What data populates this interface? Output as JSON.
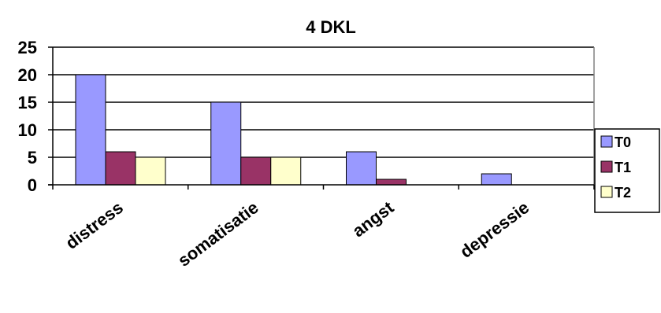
{
  "chart_data": {
    "type": "bar",
    "title": "4 DKL",
    "categories": [
      "distress",
      "somatisatie",
      "angst",
      "depressie"
    ],
    "series": [
      {
        "name": "T0",
        "values": [
          20,
          15,
          6,
          2
        ],
        "color": "#9999FF"
      },
      {
        "name": "T1",
        "values": [
          6,
          5,
          1,
          0
        ],
        "color": "#993366"
      },
      {
        "name": "T2",
        "values": [
          5,
          5,
          0,
          0
        ],
        "color": "#FFFFCC"
      }
    ],
    "yticks": [
      0,
      5,
      10,
      15,
      20,
      25
    ],
    "ylim": [
      0,
      25
    ],
    "grid": true,
    "legend": "right"
  }
}
